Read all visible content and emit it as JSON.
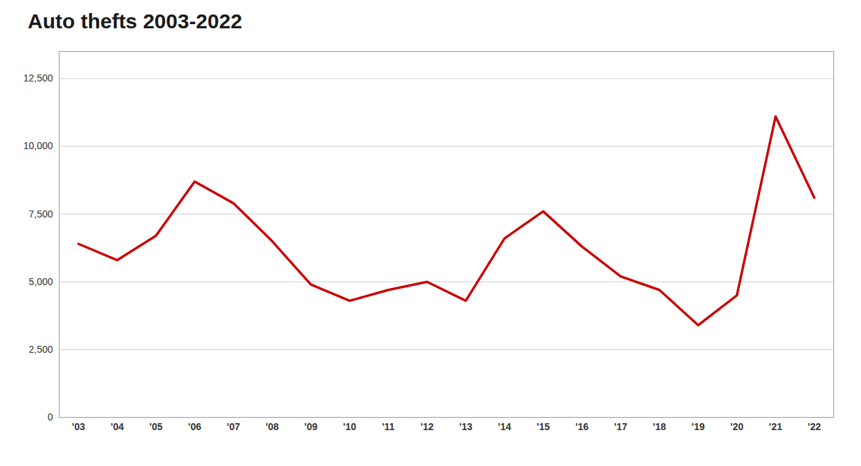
{
  "chart_data": {
    "type": "line",
    "title": "Auto thefts 2003-2022",
    "categories": [
      "'03",
      "'04",
      "'05",
      "'06",
      "'07",
      "'08",
      "'09",
      "'10",
      "'11",
      "'12",
      "'13",
      "'14",
      "'15",
      "'16",
      "'17",
      "'18",
      "'19",
      "'20",
      "'21",
      "'22"
    ],
    "values": [
      6400,
      5800,
      6700,
      8700,
      7900,
      6500,
      4900,
      4300,
      4700,
      5000,
      4300,
      6600,
      7600,
      6300,
      5200,
      4700,
      3400,
      4500,
      11100,
      8100
    ],
    "color": "#cc0000",
    "ylim": [
      0,
      13500
    ],
    "yticks": [
      0,
      {
        "value": 2500,
        "label": "2,500"
      },
      {
        "value": 5000,
        "label": "5,000"
      },
      {
        "value": 7500,
        "label": "7,500"
      },
      {
        "value": 10000,
        "label": "10,000"
      },
      {
        "value": 12500,
        "label": "12,500"
      }
    ],
    "grid": true
  }
}
